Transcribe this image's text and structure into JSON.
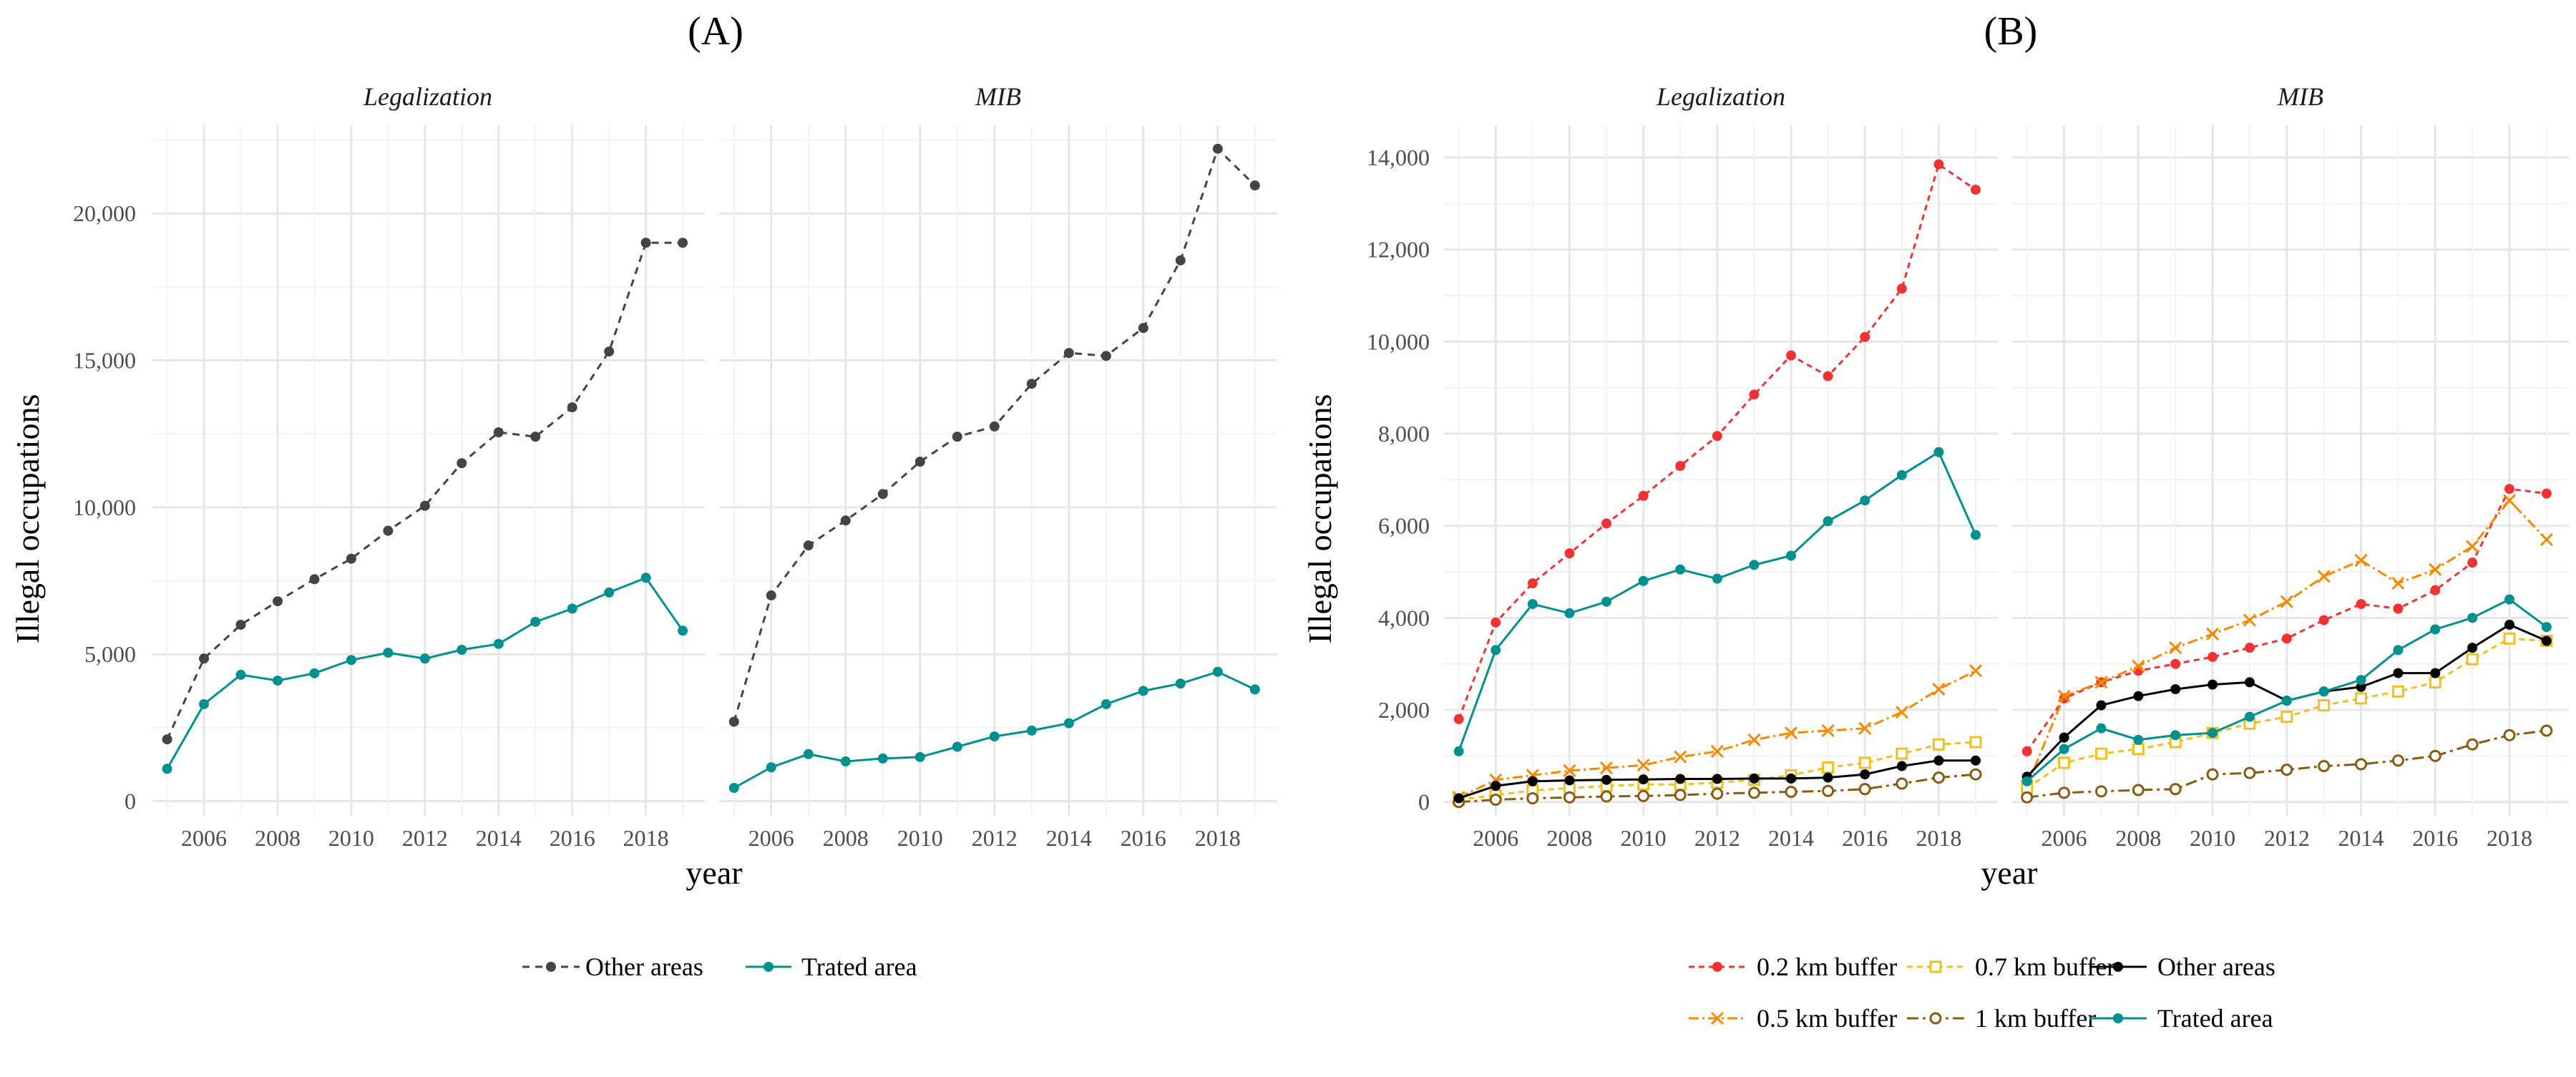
{
  "figure": {
    "colors": {
      "other_areas_A": "#444444",
      "trated_area": "#009090",
      "buffer_02": "#f03232",
      "buffer_05": "#f58a00",
      "buffer_07": "#f0c020",
      "buffer_1": "#8a5a10",
      "other_areas_B": "#000000"
    }
  },
  "chart_data": [
    {
      "id": "A",
      "type": "line",
      "tag": "(A)",
      "xlabel": "year",
      "ylabel": "Illegal occupations",
      "xlim": [
        2004.6,
        2019.6
      ],
      "ylim": [
        -500,
        23000
      ],
      "x_ticks": [
        "2006",
        "2008",
        "2010",
        "2012",
        "2014",
        "2016",
        "2018"
      ],
      "y_ticks": [
        "0",
        "5,000",
        "10,000",
        "15,000",
        "20,000"
      ],
      "x": [
        2005,
        2006,
        2007,
        2008,
        2009,
        2010,
        2011,
        2012,
        2013,
        2014,
        2015,
        2016,
        2017,
        2018,
        2019
      ],
      "facets": [
        {
          "label": "Legalization",
          "series": [
            {
              "name": "Other areas",
              "values": [
                2100,
                4850,
                6000,
                6800,
                7550,
                8250,
                9200,
                10050,
                11500,
                12550,
                12400,
                13400,
                15300,
                19000,
                19000
              ]
            },
            {
              "name": "Trated area",
              "values": [
                1100,
                3300,
                4300,
                4100,
                4350,
                4800,
                5050,
                4850,
                5150,
                5350,
                6100,
                6550,
                7100,
                7600,
                5800
              ]
            }
          ]
        },
        {
          "label": "MIB",
          "series": [
            {
              "name": "Other areas",
              "values": [
                2700,
                7000,
                8700,
                9550,
                10450,
                11550,
                12400,
                12750,
                14200,
                15250,
                15150,
                16100,
                18400,
                22200,
                20950
              ]
            },
            {
              "name": "Trated area",
              "values": [
                450,
                1150,
                1600,
                1350,
                1450,
                1500,
                1850,
                2200,
                2400,
                2650,
                3300,
                3750,
                4000,
                4400,
                3800
              ]
            }
          ]
        }
      ],
      "legend": [
        "Other areas",
        "Trated area"
      ]
    },
    {
      "id": "B",
      "type": "line",
      "tag": "(B)",
      "xlabel": "year",
      "ylabel": "Illegal occupations",
      "xlim": [
        2004.6,
        2019.6
      ],
      "ylim": [
        -300,
        14700
      ],
      "x_ticks": [
        "2006",
        "2008",
        "2010",
        "2012",
        "2014",
        "2016",
        "2018"
      ],
      "y_ticks": [
        "0",
        "2,000",
        "4,000",
        "6,000",
        "8,000",
        "10,000",
        "12,000",
        "14,000"
      ],
      "x": [
        2005,
        2006,
        2007,
        2008,
        2009,
        2010,
        2011,
        2012,
        2013,
        2014,
        2015,
        2016,
        2017,
        2018,
        2019
      ],
      "facets": [
        {
          "label": "Legalization",
          "series": [
            {
              "name": "0.2 km buffer",
              "values": [
                1800,
                3900,
                4750,
                5400,
                6050,
                6650,
                7300,
                7950,
                8850,
                9700,
                9250,
                10100,
                11150,
                13850,
                13300
              ]
            },
            {
              "name": "0.5 km buffer",
              "values": [
                100,
                480,
                580,
                680,
                740,
                800,
                980,
                1100,
                1350,
                1500,
                1550,
                1600,
                1950,
                2450,
                2850
              ]
            },
            {
              "name": "0.7 km buffer",
              "values": [
                50,
                150,
                250,
                300,
                350,
                380,
                380,
                420,
                480,
                580,
                750,
                850,
                1050,
                1250,
                1300
              ]
            },
            {
              "name": "1 km buffer",
              "values": [
                0,
                50,
                80,
                100,
                120,
                130,
                150,
                180,
                200,
                220,
                240,
                280,
                400,
                530,
                600
              ]
            },
            {
              "name": "Other areas",
              "values": [
                80,
                350,
                450,
                470,
                480,
                490,
                500,
                500,
                510,
                510,
                530,
                600,
                780,
                900,
                900
              ]
            },
            {
              "name": "Trated area",
              "values": [
                1100,
                3300,
                4300,
                4100,
                4350,
                4800,
                5050,
                4850,
                5150,
                5350,
                6100,
                6550,
                7100,
                7600,
                5800
              ]
            }
          ]
        },
        {
          "label": "MIB",
          "series": [
            {
              "name": "0.2 km buffer",
              "values": [
                1100,
                2250,
                2600,
                2850,
                3000,
                3150,
                3350,
                3550,
                3950,
                4300,
                4200,
                4600,
                5200,
                6800,
                6700
              ]
            },
            {
              "name": "0.5 km buffer",
              "values": [
                350,
                2300,
                2600,
                2950,
                3350,
                3650,
                3950,
                4350,
                4900,
                5250,
                4750,
                5050,
                5550,
                6550,
                5700
              ]
            },
            {
              "name": "0.7 km buffer",
              "values": [
                300,
                850,
                1050,
                1150,
                1300,
                1500,
                1700,
                1850,
                2100,
                2250,
                2400,
                2600,
                3100,
                3550,
                3500
              ]
            },
            {
              "name": "1 km buffer",
              "values": [
                100,
                200,
                230,
                260,
                280,
                600,
                630,
                700,
                780,
                820,
                900,
                1000,
                1250,
                1450,
                1550
              ]
            },
            {
              "name": "Other areas",
              "values": [
                550,
                1400,
                2100,
                2300,
                2450,
                2550,
                2600,
                2200,
                2400,
                2500,
                2800,
                2800,
                3350,
                3850,
                3500
              ]
            },
            {
              "name": "Trated area",
              "values": [
                450,
                1150,
                1600,
                1350,
                1450,
                1500,
                1850,
                2200,
                2400,
                2650,
                3300,
                3750,
                4000,
                4400,
                3800
              ]
            }
          ]
        }
      ],
      "legend": [
        "0.2 km buffer",
        "0.5 km buffer",
        "0.7 km buffer",
        "1 km buffer",
        "Other areas",
        "Trated area"
      ]
    }
  ]
}
